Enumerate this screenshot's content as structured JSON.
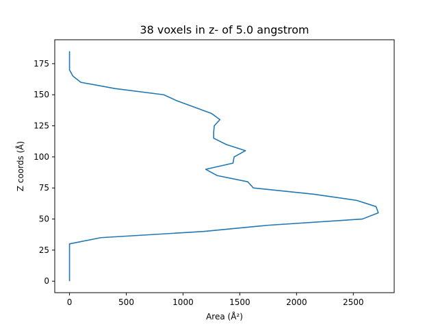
{
  "chart_data": {
    "type": "line",
    "title": "38 voxels in z- of 5.0 angstrom",
    "xlabel": "Area (Å²)",
    "ylabel": "Z coords (Å)",
    "xlim": [
      -130,
      2860
    ],
    "ylim": [
      -9.25,
      194.25
    ],
    "xticks": [
      0,
      500,
      1000,
      1500,
      2000,
      2500
    ],
    "yticks": [
      0,
      25,
      50,
      75,
      100,
      125,
      150,
      175
    ],
    "grid": false,
    "legend": "none",
    "series": [
      {
        "color": "#1f77b4",
        "points": [
          [
            0,
            0
          ],
          [
            0,
            5
          ],
          [
            0,
            10
          ],
          [
            0,
            15
          ],
          [
            0,
            20
          ],
          [
            0,
            25
          ],
          [
            0,
            30
          ],
          [
            275,
            35
          ],
          [
            1180,
            40
          ],
          [
            1750,
            45
          ],
          [
            2580,
            50
          ],
          [
            2720,
            55
          ],
          [
            2700,
            60
          ],
          [
            2530,
            65
          ],
          [
            2150,
            70
          ],
          [
            1620,
            75
          ],
          [
            1570,
            80
          ],
          [
            1300,
            85
          ],
          [
            1200,
            90
          ],
          [
            1440,
            95
          ],
          [
            1450,
            100
          ],
          [
            1550,
            105
          ],
          [
            1380,
            110
          ],
          [
            1270,
            115
          ],
          [
            1270,
            120
          ],
          [
            1275,
            125
          ],
          [
            1325,
            130
          ],
          [
            1250,
            135
          ],
          [
            1100,
            140
          ],
          [
            950,
            145
          ],
          [
            830,
            150
          ],
          [
            400,
            155
          ],
          [
            100,
            160
          ],
          [
            30,
            165
          ],
          [
            0,
            170
          ],
          [
            0,
            175
          ],
          [
            0,
            180
          ],
          [
            0,
            185
          ]
        ]
      }
    ]
  }
}
